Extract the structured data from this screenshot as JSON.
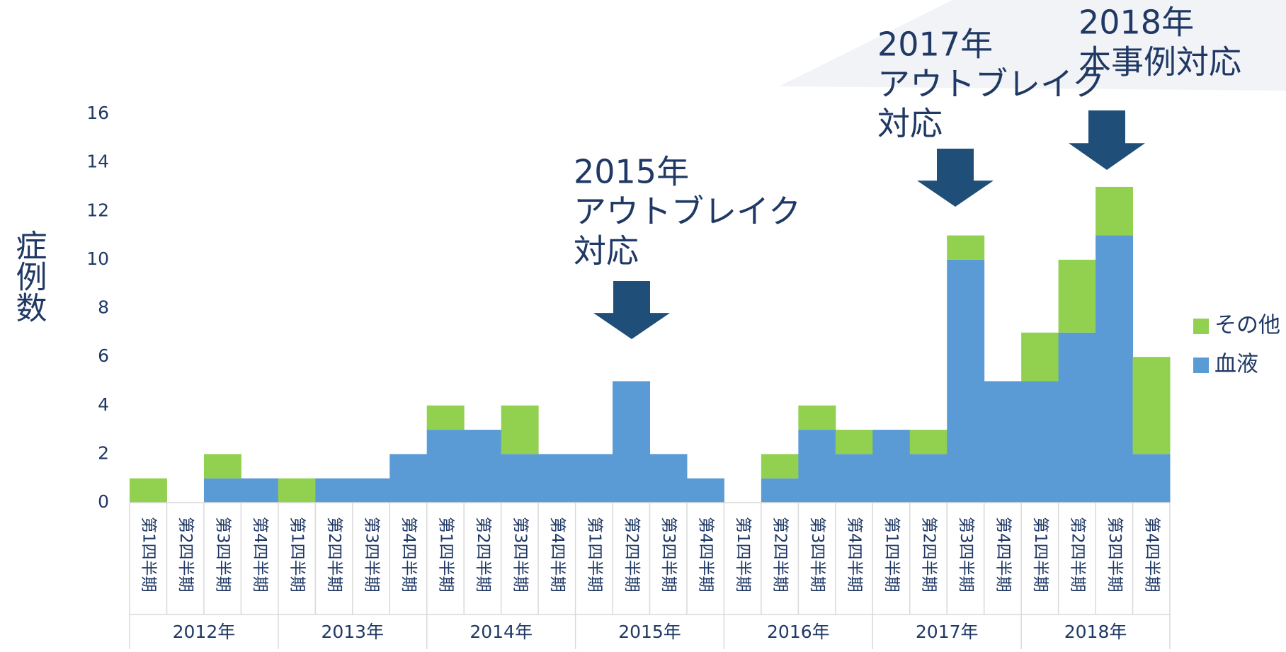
{
  "chart_data": {
    "type": "stacked-bar",
    "y_label": "症例数",
    "categories": [
      "第1四半期",
      "第2四半期",
      "第3四半期",
      "第4四半期",
      "第1四半期",
      "第2四半期",
      "第3四半期",
      "第4四半期",
      "第1四半期",
      "第2四半期",
      "第3四半期",
      "第4四半期",
      "第1四半期",
      "第2四半期",
      "第3四半期",
      "第4四半期",
      "第1四半期",
      "第2四半期",
      "第3四半期",
      "第4四半期",
      "第1四半期",
      "第2四半期",
      "第3四半期",
      "第4四半期",
      "第1四半期",
      "第2四半期",
      "第3四半期",
      "第4四半期"
    ],
    "groups": [
      "2012年",
      "2013年",
      "2014年",
      "2015年",
      "2016年",
      "2017年",
      "2018年"
    ],
    "series": [
      {
        "name": "血液",
        "color": "#5b9bd5",
        "values": [
          0,
          0,
          1,
          1,
          0,
          1,
          1,
          2,
          3,
          3,
          2,
          2,
          2,
          5,
          2,
          1,
          0,
          1,
          3,
          2,
          3,
          2,
          10,
          5,
          5,
          7,
          11,
          2
        ]
      },
      {
        "name": "その他",
        "color": "#92d050",
        "values": [
          1,
          0,
          1,
          0,
          1,
          0,
          0,
          0,
          1,
          0,
          2,
          0,
          0,
          0,
          0,
          0,
          0,
          1,
          1,
          1,
          0,
          1,
          1,
          0,
          2,
          3,
          2,
          4
        ]
      }
    ],
    "ylim": [
      0,
      16
    ],
    "yticks": [
      0,
      2,
      4,
      6,
      8,
      10,
      12,
      14,
      16
    ],
    "grid": false,
    "annotations": [
      {
        "lines": [
          "2015年",
          "アウトブレイク",
          "対応"
        ]
      },
      {
        "lines": [
          "2017年",
          "アウトブレイク",
          "対応"
        ]
      },
      {
        "lines": [
          "2018年",
          "本事例対応"
        ]
      }
    ]
  }
}
